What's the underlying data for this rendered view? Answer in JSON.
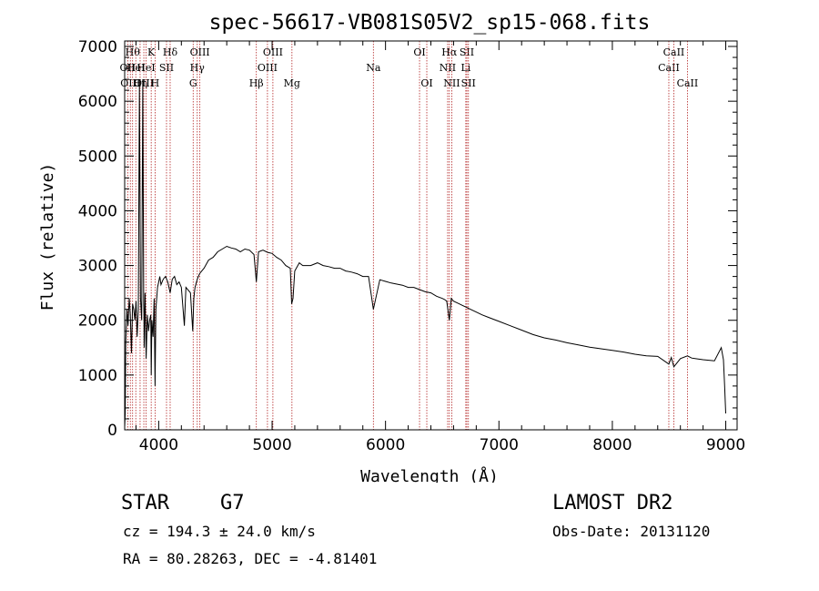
{
  "chart_data": {
    "type": "line",
    "title": "spec-56617-VB081S05V2_sp15-068.fits",
    "xlabel": "Wavelength (Å)",
    "ylabel": "Flux (relative)",
    "xlim": [
      3700,
      9100
    ],
    "ylim": [
      0,
      7100
    ],
    "xticks": [
      4000,
      5000,
      6000,
      7000,
      8000,
      9000
    ],
    "yticks": [
      0,
      1000,
      2000,
      3000,
      4000,
      5000,
      6000,
      7000
    ],
    "xtick_labels": [
      "4000",
      "5000",
      "6000",
      "7000",
      "8000",
      "9000"
    ],
    "ytick_labels": [
      "0",
      "1000",
      "2000",
      "3000",
      "4000",
      "5000",
      "6000",
      "7000"
    ],
    "series": [
      {
        "name": "flux",
        "x": [
          3700,
          3705,
          3710,
          3720,
          3730,
          3740,
          3750,
          3760,
          3770,
          3780,
          3790,
          3800,
          3810,
          3820,
          3830,
          3840,
          3850,
          3860,
          3868,
          3870,
          3872,
          3880,
          3889,
          3900,
          3910,
          3920,
          3930,
          3934,
          3940,
          3950,
          3960,
          3968,
          3975,
          3990,
          4000,
          4010,
          4020,
          4040,
          4060,
          4080,
          4101,
          4120,
          4140,
          4160,
          4180,
          4200,
          4226,
          4240,
          4260,
          4280,
          4300,
          4310,
          4320,
          4340,
          4360,
          4380,
          4400,
          4440,
          4480,
          4520,
          4560,
          4600,
          4640,
          4680,
          4720,
          4760,
          4800,
          4840,
          4861,
          4880,
          4920,
          4960,
          5000,
          5040,
          5080,
          5120,
          5160,
          5172,
          5184,
          5200,
          5240,
          5270,
          5300,
          5340,
          5400,
          5450,
          5500,
          5550,
          5600,
          5650,
          5700,
          5750,
          5800,
          5850,
          5893,
          5950,
          6000,
          6050,
          6100,
          6150,
          6200,
          6250,
          6300,
          6350,
          6400,
          6450,
          6500,
          6520,
          6540,
          6563,
          6580,
          6600,
          6650,
          6700,
          6750,
          6800,
          6850,
          6900,
          6950,
          7000,
          7100,
          7200,
          7300,
          7400,
          7500,
          7600,
          7700,
          7800,
          7900,
          8000,
          8100,
          8200,
          8300,
          8400,
          8498,
          8520,
          8542,
          8600,
          8662,
          8700,
          8800,
          8900,
          8960,
          8980,
          8990,
          9000
        ],
        "values": [
          50,
          300,
          1600,
          2200,
          1900,
          2400,
          2100,
          1400,
          2300,
          2200,
          2000,
          2350,
          1700,
          2200,
          6300,
          2400,
          2000,
          6400,
          2300,
          2100,
          1500,
          2500,
          1300,
          2100,
          1800,
          2000,
          2100,
          1000,
          2000,
          1700,
          2400,
          800,
          2200,
          2600,
          2700,
          2800,
          2650,
          2750,
          2800,
          2700,
          2500,
          2750,
          2800,
          2650,
          2700,
          2600,
          1900,
          2600,
          2550,
          2500,
          1800,
          2400,
          2600,
          2750,
          2850,
          2900,
          2950,
          3100,
          3150,
          3250,
          3300,
          3350,
          3320,
          3300,
          3250,
          3300,
          3280,
          3200,
          2700,
          3250,
          3280,
          3240,
          3220,
          3150,
          3100,
          3000,
          2950,
          2300,
          2400,
          2900,
          3050,
          3000,
          3000,
          3000,
          3050,
          3000,
          2980,
          2950,
          2950,
          2900,
          2880,
          2850,
          2800,
          2800,
          2200,
          2740,
          2710,
          2680,
          2660,
          2640,
          2600,
          2600,
          2560,
          2520,
          2500,
          2440,
          2400,
          2380,
          2350,
          2000,
          2400,
          2350,
          2300,
          2250,
          2200,
          2150,
          2100,
          2060,
          2020,
          1980,
          1900,
          1820,
          1740,
          1680,
          1640,
          1590,
          1550,
          1510,
          1480,
          1450,
          1420,
          1380,
          1350,
          1340,
          1200,
          1320,
          1150,
          1300,
          1350,
          1310,
          1280,
          1260,
          1500,
          1280,
          800,
          300
        ]
      }
    ],
    "line_markers": [
      {
        "wavelength": 3727,
        "label": "OII",
        "row": 1
      },
      {
        "wavelength": 3750,
        "label": "OIII",
        "row": 2
      },
      {
        "wavelength": 3770,
        "label": "Hθ",
        "row": 0
      },
      {
        "wavelength": 3798,
        "label": "HeI",
        "row": 1
      },
      {
        "wavelength": 3836,
        "label": "Hη",
        "row": 2
      },
      {
        "wavelength": 3869,
        "label": "OIII",
        "row": 2
      },
      {
        "wavelength": 3889,
        "label": "HeI",
        "row": 1
      },
      {
        "wavelength": 3934,
        "label": "K",
        "row": 0
      },
      {
        "wavelength": 3968,
        "label": "H",
        "row": 2
      },
      {
        "wavelength": 4069,
        "label": "SII",
        "row": 1
      },
      {
        "wavelength": 4101,
        "label": "Hδ",
        "row": 0
      },
      {
        "wavelength": 4304,
        "label": "G",
        "row": 2
      },
      {
        "wavelength": 4340,
        "label": "Hγ",
        "row": 1
      },
      {
        "wavelength": 4363,
        "label": "OIII",
        "row": 0
      },
      {
        "wavelength": 4861,
        "label": "Hβ",
        "row": 2
      },
      {
        "wavelength": 4959,
        "label": "OIII",
        "row": 1
      },
      {
        "wavelength": 5007,
        "label": "OIII",
        "row": 0
      },
      {
        "wavelength": 5175,
        "label": "Mg",
        "row": 2
      },
      {
        "wavelength": 5893,
        "label": "Na",
        "row": 1
      },
      {
        "wavelength": 6300,
        "label": "OI",
        "row": 0
      },
      {
        "wavelength": 6364,
        "label": "OI",
        "row": 2
      },
      {
        "wavelength": 6548,
        "label": "NII",
        "row": 1
      },
      {
        "wavelength": 6563,
        "label": "Hα",
        "row": 0
      },
      {
        "wavelength": 6584,
        "label": "NII",
        "row": 2
      },
      {
        "wavelength": 6708,
        "label": "Li",
        "row": 1
      },
      {
        "wavelength": 6717,
        "label": "SII",
        "row": 0
      },
      {
        "wavelength": 6731,
        "label": "SII",
        "row": 2
      },
      {
        "wavelength": 8498,
        "label": "CaII",
        "row": 1
      },
      {
        "wavelength": 8542,
        "label": "CaII",
        "row": 0
      },
      {
        "wavelength": 8662,
        "label": "CaII",
        "row": 2
      }
    ],
    "colors": {
      "line": "#000000",
      "markers": "#b22222",
      "axes": "#000000"
    }
  },
  "info": {
    "object_type": "STAR",
    "subclass": "G7",
    "survey": "LAMOST DR2",
    "cz": "cz = 194.3 ± 24.0 km/s",
    "obs_date": "Obs-Date: 20131120",
    "coords": "RA =  80.28263, DEC =  -4.81401"
  }
}
